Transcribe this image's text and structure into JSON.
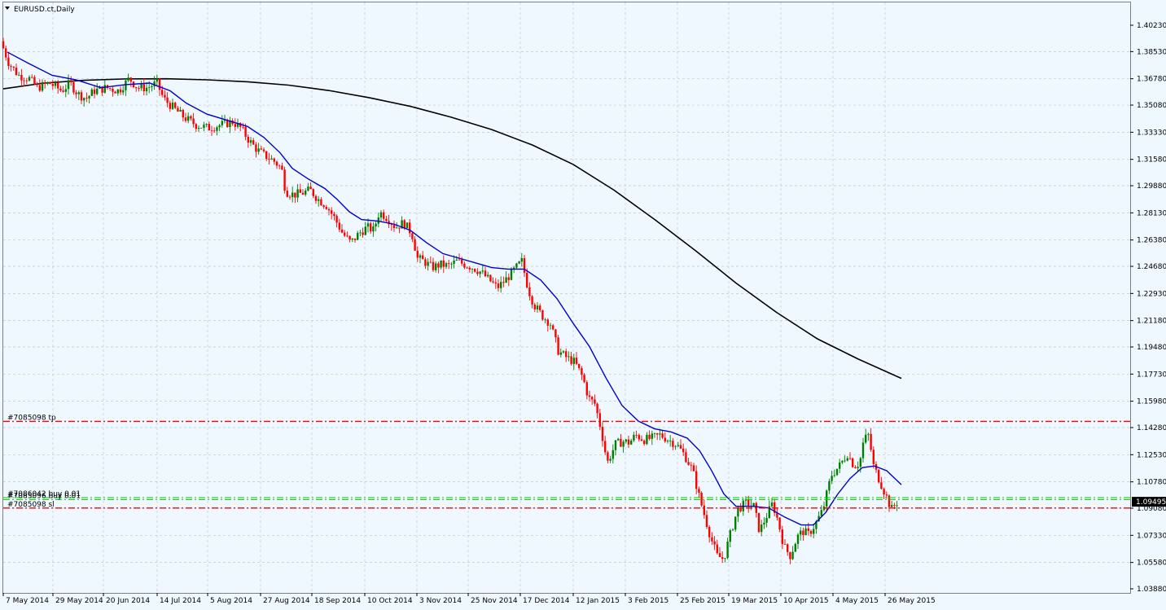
{
  "window": {
    "title": "EURUSD.ct,Daily",
    "menu_icon": "triangle-down-icon"
  },
  "chart_data": {
    "type": "candlestick",
    "symbol": "EURUSD.ct",
    "timeframe": "Daily",
    "ylim": [
      1.0388,
      1.4106
    ],
    "y_ticks": [
      "1.40230",
      "1.38530",
      "1.36780",
      "1.35080",
      "1.33330",
      "1.31580",
      "1.29880",
      "1.28130",
      "1.26380",
      "1.24680",
      "1.22930",
      "1.21180",
      "1.19480",
      "1.17730",
      "1.15980",
      "1.14280",
      "1.12530",
      "1.10780",
      "1.09080",
      "1.07330",
      "1.05580",
      "1.03880"
    ],
    "x_ticks": [
      "7 May 2014",
      "29 May 2014",
      "20 Jun 2014",
      "14 Jul 2014",
      "5 Aug 2014",
      "27 Aug 2014",
      "18 Sep 2014",
      "10 Oct 2014",
      "3 Nov 2014",
      "25 Nov 2014",
      "17 Dec 2014",
      "12 Jan 2015",
      "3 Feb 2015",
      "25 Feb 2015",
      "19 Mar 2015",
      "10 Apr 2015",
      "4 May 2015",
      "26 May 2015"
    ],
    "grid": true,
    "close_path": [
      [
        0,
        1.392
      ],
      [
        10,
        1.378
      ],
      [
        22,
        1.37
      ],
      [
        35,
        1.368
      ],
      [
        45,
        1.362
      ],
      [
        60,
        1.365
      ],
      [
        75,
        1.36
      ],
      [
        85,
        1.365
      ],
      [
        95,
        1.358
      ],
      [
        105,
        1.355
      ],
      [
        115,
        1.36
      ],
      [
        130,
        1.362
      ],
      [
        145,
        1.36
      ],
      [
        158,
        1.368
      ],
      [
        168,
        1.362
      ],
      [
        180,
        1.362
      ],
      [
        192,
        1.365
      ],
      [
        200,
        1.355
      ],
      [
        210,
        1.35
      ],
      [
        225,
        1.343
      ],
      [
        240,
        1.338
      ],
      [
        255,
        1.336
      ],
      [
        270,
        1.338
      ],
      [
        285,
        1.34
      ],
      [
        295,
        1.336
      ],
      [
        305,
        1.328
      ],
      [
        315,
        1.322
      ],
      [
        325,
        1.318
      ],
      [
        335,
        1.315
      ],
      [
        345,
        1.31
      ],
      [
        350,
        1.295
      ],
      [
        360,
        1.293
      ],
      [
        370,
        1.294
      ],
      [
        380,
        1.296
      ],
      [
        390,
        1.29
      ],
      [
        400,
        1.286
      ],
      [
        410,
        1.278
      ],
      [
        420,
        1.268
      ],
      [
        430,
        1.262
      ],
      [
        440,
        1.268
      ],
      [
        450,
        1.272
      ],
      [
        458,
        1.27
      ],
      [
        465,
        1.282
      ],
      [
        475,
        1.278
      ],
      [
        485,
        1.272
      ],
      [
        495,
        1.275
      ],
      [
        505,
        1.268
      ],
      [
        512,
        1.252
      ],
      [
        520,
        1.25
      ],
      [
        530,
        1.246
      ],
      [
        540,
        1.248
      ],
      [
        550,
        1.247
      ],
      [
        560,
        1.25
      ],
      [
        570,
        1.248
      ],
      [
        580,
        1.246
      ],
      [
        590,
        1.243
      ],
      [
        600,
        1.238
      ],
      [
        610,
        1.233
      ],
      [
        620,
        1.238
      ],
      [
        630,
        1.244
      ],
      [
        640,
        1.25
      ],
      [
        648,
        1.232
      ],
      [
        655,
        1.222
      ],
      [
        665,
        1.215
      ],
      [
        675,
        1.21
      ],
      [
        685,
        1.192
      ],
      [
        695,
        1.188
      ],
      [
        705,
        1.185
      ],
      [
        715,
        1.175
      ],
      [
        722,
        1.162
      ],
      [
        730,
        1.158
      ],
      [
        738,
        1.14
      ],
      [
        745,
        1.12
      ],
      [
        755,
        1.132
      ],
      [
        765,
        1.134
      ],
      [
        772,
        1.133
      ],
      [
        780,
        1.138
      ],
      [
        790,
        1.135
      ],
      [
        800,
        1.136
      ],
      [
        810,
        1.138
      ],
      [
        820,
        1.135
      ],
      [
        830,
        1.132
      ],
      [
        840,
        1.125
      ],
      [
        850,
        1.115
      ],
      [
        858,
        1.098
      ],
      [
        865,
        1.085
      ],
      [
        872,
        1.072
      ],
      [
        880,
        1.06
      ],
      [
        888,
        1.058
      ],
      [
        895,
        1.072
      ],
      [
        905,
        1.09
      ],
      [
        915,
        1.094
      ],
      [
        925,
        1.092
      ],
      [
        932,
        1.076
      ],
      [
        940,
        1.085
      ],
      [
        948,
        1.094
      ],
      [
        955,
        1.082
      ],
      [
        962,
        1.066
      ],
      [
        970,
        1.06
      ],
      [
        978,
        1.072
      ],
      [
        985,
        1.076
      ],
      [
        992,
        1.074
      ],
      [
        1000,
        1.08
      ],
      [
        1010,
        1.09
      ],
      [
        1020,
        1.112
      ],
      [
        1030,
        1.118
      ],
      [
        1040,
        1.126
      ],
      [
        1048,
        1.118
      ],
      [
        1055,
        1.12
      ],
      [
        1060,
        1.135
      ],
      [
        1066,
        1.138
      ],
      [
        1072,
        1.118
      ],
      [
        1080,
        1.108
      ],
      [
        1088,
        1.098
      ],
      [
        1094,
        1.09
      ],
      [
        1100,
        1.0945
      ]
    ],
    "blue_ma_path": [
      [
        5,
        1.385
      ],
      [
        30,
        1.378
      ],
      [
        60,
        1.37
      ],
      [
        90,
        1.367
      ],
      [
        120,
        1.362
      ],
      [
        150,
        1.364
      ],
      [
        180,
        1.365
      ],
      [
        205,
        1.36
      ],
      [
        225,
        1.352
      ],
      [
        250,
        1.345
      ],
      [
        275,
        1.341
      ],
      [
        300,
        1.337
      ],
      [
        320,
        1.33
      ],
      [
        340,
        1.32
      ],
      [
        355,
        1.31
      ],
      [
        375,
        1.303
      ],
      [
        395,
        1.297
      ],
      [
        410,
        1.29
      ],
      [
        425,
        1.282
      ],
      [
        440,
        1.277
      ],
      [
        460,
        1.276
      ],
      [
        480,
        1.274
      ],
      [
        500,
        1.27
      ],
      [
        520,
        1.262
      ],
      [
        540,
        1.255
      ],
      [
        560,
        1.252
      ],
      [
        580,
        1.249
      ],
      [
        600,
        1.246
      ],
      [
        620,
        1.245
      ],
      [
        640,
        1.245
      ],
      [
        660,
        1.238
      ],
      [
        680,
        1.226
      ],
      [
        700,
        1.21
      ],
      [
        720,
        1.195
      ],
      [
        740,
        1.175
      ],
      [
        760,
        1.157
      ],
      [
        780,
        1.147
      ],
      [
        800,
        1.142
      ],
      [
        820,
        1.14
      ],
      [
        840,
        1.136
      ],
      [
        855,
        1.128
      ],
      [
        870,
        1.115
      ],
      [
        885,
        1.1
      ],
      [
        900,
        1.092
      ],
      [
        920,
        1.092
      ],
      [
        940,
        1.091
      ],
      [
        960,
        1.085
      ],
      [
        980,
        1.08
      ],
      [
        995,
        1.08
      ],
      [
        1010,
        1.088
      ],
      [
        1025,
        1.1
      ],
      [
        1040,
        1.11
      ],
      [
        1055,
        1.117
      ],
      [
        1070,
        1.118
      ],
      [
        1085,
        1.115
      ],
      [
        1103,
        1.106
      ]
    ],
    "black_ma_path": [
      [
        0,
        1.3613
      ],
      [
        50,
        1.365
      ],
      [
        100,
        1.3668
      ],
      [
        150,
        1.3677
      ],
      [
        200,
        1.3678
      ],
      [
        250,
        1.3671
      ],
      [
        300,
        1.3658
      ],
      [
        350,
        1.3637
      ],
      [
        400,
        1.3602
      ],
      [
        450,
        1.3555
      ],
      [
        500,
        1.35
      ],
      [
        550,
        1.343
      ],
      [
        600,
        1.335
      ],
      [
        650,
        1.325
      ],
      [
        700,
        1.3125
      ],
      [
        750,
        1.296
      ],
      [
        800,
        1.277
      ],
      [
        850,
        1.257
      ],
      [
        900,
        1.236
      ],
      [
        950,
        1.217
      ],
      [
        1000,
        1.2
      ],
      [
        1050,
        1.187
      ],
      [
        1103,
        1.1745
      ]
    ],
    "levels": [
      {
        "label": "#7085098 tp",
        "value": 1.1468,
        "color": "#ff0000",
        "style": "dashdot"
      },
      {
        "label": "#7086042 buy 0.01",
        "value": 1.0976,
        "color": "#00cc00",
        "style": "dashdot"
      },
      {
        "label": "#7085096 buy 0.01",
        "value": 1.0964,
        "color": "#00cc00",
        "style": "dashdot"
      },
      {
        "label": "#7085098 sl",
        "value": 1.0909,
        "color": "#ff0000",
        "style": "dashdot"
      }
    ],
    "current_price": "1.09495",
    "colors": {
      "background": "#f0f8ff",
      "grid": "#c0c8d0",
      "bull": "#008000",
      "bear": "#ff0000",
      "ma_fast": "#0000cc",
      "ma_slow": "#000000"
    }
  }
}
